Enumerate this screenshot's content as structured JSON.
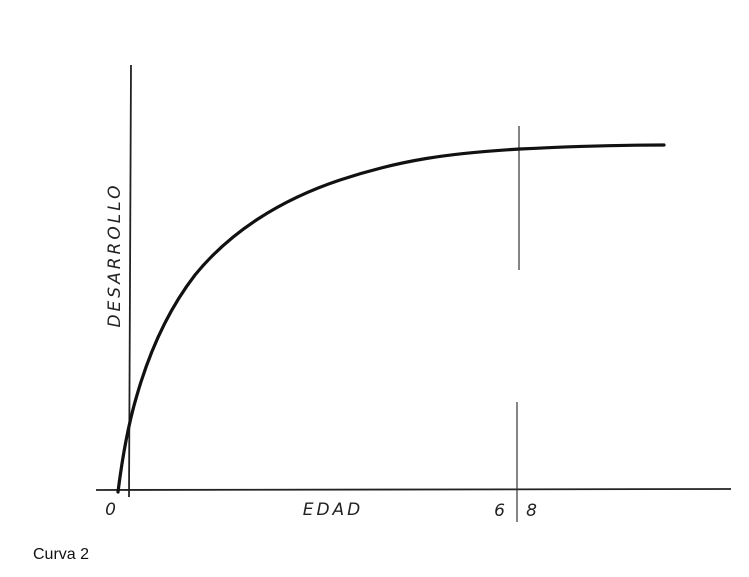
{
  "axes": {
    "y_label": "DESARROLLO",
    "x_label": "EDAD",
    "x_ticks": [
      "0",
      "6",
      "8"
    ]
  },
  "caption": "Curva 2"
}
